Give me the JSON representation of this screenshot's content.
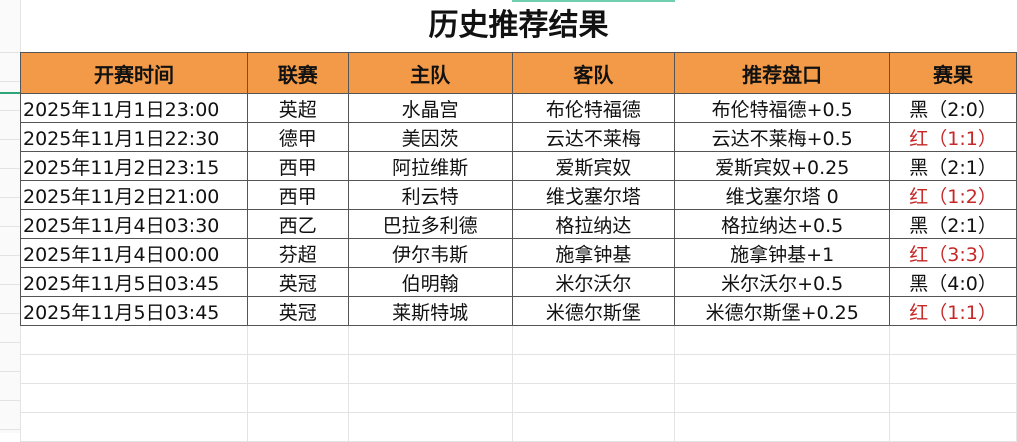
{
  "title": "历史推荐结果",
  "headers": [
    "开赛时间",
    "联赛",
    "主队",
    "客队",
    "推荐盘口",
    "赛果"
  ],
  "rows": [
    [
      "2025年11月1日23:00",
      "英超",
      "水晶宫",
      "布伦特福德",
      "布伦特福德+0.5",
      "黑（2:0）",
      "black"
    ],
    [
      "2025年11月1日22:30",
      "德甲",
      "美因茨",
      "云达不莱梅",
      "云达不莱梅+0.5",
      "红（1:1）",
      "red"
    ],
    [
      "2025年11月2日23:15",
      "西甲",
      "阿拉维斯",
      "爱斯宾奴",
      "爱斯宾奴+0.25",
      "黑（2:1）",
      "black"
    ],
    [
      "2025年11月2日21:00",
      "西甲",
      "利云特",
      "维戈塞尔塔",
      "维戈塞尔塔 0",
      "红（1:2）",
      "red"
    ],
    [
      "2025年11月4日03:30",
      "西乙",
      "巴拉多利德",
      "格拉纳达",
      "格拉纳达+0.5",
      "黑（2:1）",
      "black"
    ],
    [
      "2025年11月4日00:00",
      "芬超",
      "伊尔韦斯",
      "施拿钟基",
      "施拿钟基+1",
      "红（3:3）",
      "red"
    ],
    [
      "2025年11月5日03:45",
      "英冠",
      "伯明翰",
      "米尔沃尔",
      "米尔沃尔+0.5",
      "黑（4:0）",
      "black"
    ],
    [
      "2025年11月5日03:45",
      "英冠",
      "莱斯特城",
      "米德尔斯堡",
      "米德尔斯堡+0.25",
      "红（1:1）",
      "red"
    ]
  ],
  "colors": {
    "header_bg": "#f29a47",
    "red_result": "#c62828"
  }
}
